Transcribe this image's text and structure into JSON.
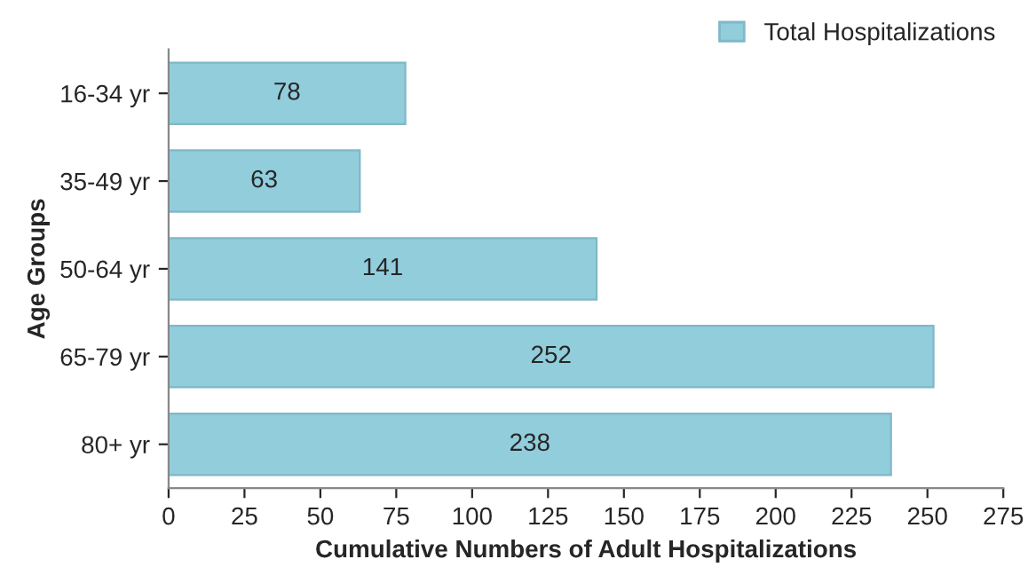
{
  "chart_data": {
    "type": "bar",
    "orientation": "horizontal",
    "xlabel": "Cumulative Numbers of Adult Hospitalizations",
    "ylabel": "Age Groups",
    "categories": [
      "16-34 yr",
      "35-49 yr",
      "50-64 yr",
      "65-79 yr",
      "80+ yr"
    ],
    "series": [
      {
        "name": "Total Hospitalizations",
        "color": "#92cddc",
        "values": [
          78,
          63,
          141,
          252,
          238
        ]
      }
    ],
    "xlim": [
      0,
      275
    ],
    "xticks": [
      0,
      25,
      50,
      75,
      100,
      125,
      150,
      175,
      200,
      225,
      250,
      275
    ],
    "data_labels": true,
    "legend": "top right",
    "grid": false
  }
}
